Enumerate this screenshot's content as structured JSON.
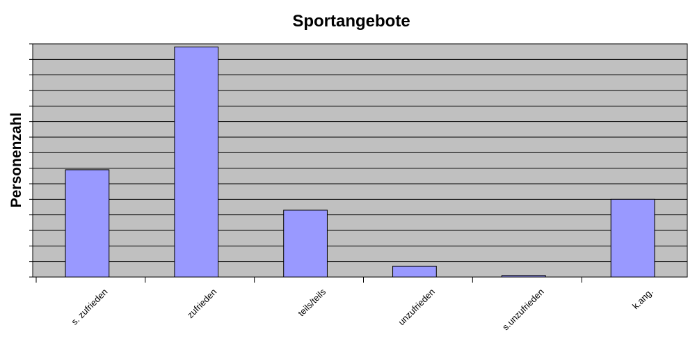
{
  "chart_data": {
    "type": "bar",
    "title": "Sportangebote",
    "y_label": "Personenzahl",
    "categories": [
      "s. zufrieden",
      "zufrieden",
      "teils/teils",
      "unzufrieden",
      "s.unzufrieden",
      "k.ang."
    ],
    "values": [
      6.9,
      14.8,
      4.3,
      0.7,
      0.1,
      5.0
    ],
    "color": "#9999ff",
    "ylim": [
      0,
      15
    ],
    "yticks": [
      0,
      1,
      2,
      3,
      4,
      5,
      6,
      7,
      8,
      9,
      10,
      11,
      12,
      13,
      14,
      15
    ],
    "grid": true
  }
}
